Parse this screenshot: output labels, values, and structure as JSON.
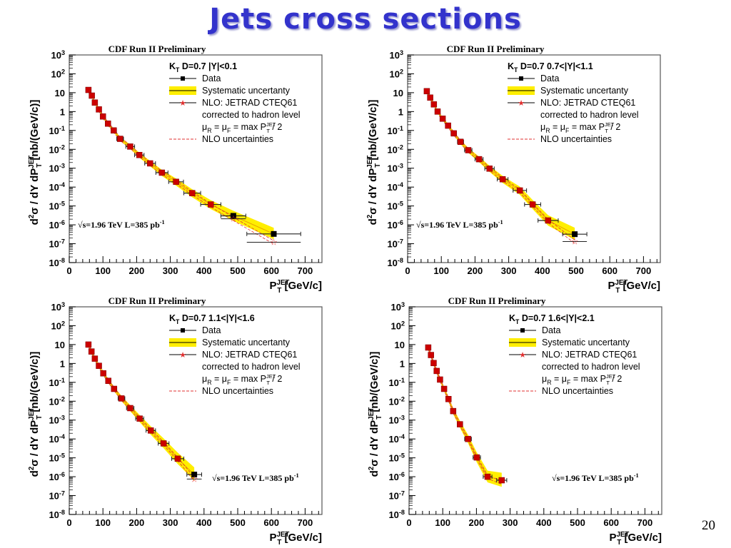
{
  "slide": {
    "title": "Jets cross sections",
    "page_number": "20"
  },
  "colors": {
    "title": "#3333cc",
    "band": "#ffee00",
    "data_marker": "#cc0000",
    "nlo_line": "#e03030",
    "axis": "#000000"
  },
  "chart_data": [
    {
      "type": "scatter",
      "title": "CDF Run II Preliminary",
      "header": "K_T  D=0.7  |Y|<0.1",
      "xlabel": "P_T^JET [GeV/c]",
      "ylabel": "d²σ / dY dP_T^JET [nb/(GeV/c)]",
      "xlim": [
        0,
        750
      ],
      "ylim": [
        1e-08,
        1000
      ],
      "yscale": "log",
      "x_ticks": [
        0,
        100,
        200,
        300,
        400,
        500,
        600,
        700
      ],
      "y_ticks": [
        "10^3",
        "10^2",
        "10",
        "1",
        "10^-1",
        "10^-2",
        "10^-3",
        "10^-4",
        "10^-5",
        "10^-6",
        "10^-7",
        "10^-8"
      ],
      "legend": [
        "Data",
        "Systematic uncertanty",
        "NLO: JETRAD CTEQ61",
        "corrected to hadron level",
        "μR = μF = max PT^JET / 2",
        "NLO uncertainties"
      ],
      "legend_position": "top-right",
      "annotation": "√s=1.96 TeV   L=385 pb^-1",
      "x": [
        57,
        67,
        76,
        88,
        100,
        115,
        132,
        151,
        181,
        208,
        240,
        275,
        317,
        365,
        420,
        487,
        607
      ],
      "xerr": [
        4,
        4,
        4,
        5,
        6,
        7,
        8,
        10,
        13,
        14,
        16,
        18,
        22,
        25,
        30,
        37,
        80
      ],
      "data": [
        14,
        7,
        3,
        1.3,
        0.55,
        0.23,
        0.1,
        0.036,
        0.014,
        0.005,
        0.0018,
        0.00058,
        0.00019,
        4.8e-05,
        1.2e-05,
        3e-06,
        3.3e-07
      ],
      "nlo": [
        14,
        7,
        3,
        1.3,
        0.55,
        0.23,
        0.1,
        0.036,
        0.014,
        0.005,
        0.0018,
        0.00058,
        0.00019,
        4.8e-05,
        1.1e-05,
        2.1e-06,
        1.2e-07
      ],
      "band_lo_factor": [
        0.85,
        0.85,
        0.85,
        0.84,
        0.83,
        0.82,
        0.8,
        0.78,
        0.75,
        0.72,
        0.7,
        0.67,
        0.63,
        0.6,
        0.57,
        0.55,
        0.52
      ],
      "band_hi_factor": [
        1.15,
        1.15,
        1.16,
        1.17,
        1.18,
        1.2,
        1.22,
        1.25,
        1.28,
        1.32,
        1.36,
        1.42,
        1.5,
        1.6,
        1.7,
        1.85,
        2.1
      ]
    },
    {
      "type": "scatter",
      "title": "CDF Run II Preliminary",
      "header": "K_T  D=0.7  0.7<|Y|<1.1",
      "xlabel": "P_T^JET [GeV/c]",
      "ylabel": "d²σ / dY dP_T^JET [nb/(GeV/c)]",
      "xlim": [
        0,
        750
      ],
      "ylim": [
        1e-08,
        1000
      ],
      "yscale": "log",
      "x_ticks": [
        0,
        100,
        200,
        300,
        400,
        500,
        600,
        700
      ],
      "y_ticks": [
        "10^3",
        "10^2",
        "10",
        "1",
        "10^-1",
        "10^-2",
        "10^-3",
        "10^-4",
        "10^-5",
        "10^-6",
        "10^-7",
        "10^-8"
      ],
      "legend": [
        "Data",
        "Systematic uncertanty",
        "NLO: JETRAD CTEQ61",
        "corrected to hadron level",
        "μR = μF = max PT^JET / 2",
        "NLO uncertainties"
      ],
      "legend_position": "top-right",
      "annotation": "√s=1.96 TeV   L=385 pb^-1",
      "x": [
        57,
        67,
        78,
        89,
        104,
        120,
        137,
        157,
        180,
        212,
        243,
        282,
        333,
        371,
        417,
        496
      ],
      "xerr": [
        4,
        4,
        4,
        5,
        6,
        7,
        8,
        9,
        11,
        12,
        14,
        16,
        20,
        24,
        30,
        36
      ],
      "data": [
        12,
        5.5,
        2.4,
        1.0,
        0.42,
        0.18,
        0.07,
        0.025,
        0.009,
        0.003,
        0.00095,
        0.00026,
        6.6e-05,
        1.2e-05,
        1.7e-06,
        3.2e-07
      ],
      "nlo": [
        12,
        5.5,
        2.4,
        1.0,
        0.42,
        0.18,
        0.07,
        0.025,
        0.009,
        0.003,
        0.00095,
        0.00026,
        6.4e-05,
        1.15e-05,
        1.6e-06,
        1.3e-07
      ],
      "band_lo_factor": [
        0.85,
        0.85,
        0.84,
        0.83,
        0.82,
        0.8,
        0.78,
        0.76,
        0.73,
        0.7,
        0.67,
        0.64,
        0.6,
        0.57,
        0.53,
        0.5
      ],
      "band_hi_factor": [
        1.15,
        1.16,
        1.17,
        1.18,
        1.2,
        1.22,
        1.25,
        1.28,
        1.32,
        1.37,
        1.43,
        1.5,
        1.6,
        1.72,
        1.9,
        2.2
      ]
    },
    {
      "type": "scatter",
      "title": "CDF Run II Preliminary",
      "header": "K_T  D=0.7  1.1<|Y|<1.6",
      "xlabel": "P_T^JET [GeV/c]",
      "ylabel": "d²σ / dY dP_T^JET [nb/(GeV/c)]",
      "xlim": [
        0,
        750
      ],
      "ylim": [
        1e-08,
        1000
      ],
      "yscale": "log",
      "x_ticks": [
        0,
        100,
        200,
        300,
        400,
        500,
        600,
        700
      ],
      "y_ticks": [
        "10^3",
        "10^2",
        "10",
        "1",
        "10^-1",
        "10^-2",
        "10^-3",
        "10^-4",
        "10^-5",
        "10^-6",
        "10^-7",
        "10^-8"
      ],
      "legend": [
        "Data",
        "Systematic uncertanty",
        "NLO: JETRAD CTEQ61",
        "corrected to hadron level",
        "μR = μF = max PT^JET / 2",
        "NLO uncertainties"
      ],
      "legend_position": "top-right",
      "annotation": "√s=1.96 TeV   L=385 pb^-1",
      "x": [
        57,
        66,
        76,
        88,
        101,
        116,
        133,
        155,
        181,
        209,
        242,
        280,
        322,
        371
      ],
      "xerr": [
        4,
        4,
        4,
        5,
        6,
        7,
        8,
        10,
        11,
        12,
        14,
        16,
        18,
        22
      ],
      "data": [
        10,
        4.3,
        1.8,
        0.75,
        0.3,
        0.12,
        0.045,
        0.014,
        0.0043,
        0.0012,
        0.00028,
        5.8e-05,
        9e-06,
        1.3e-06
      ],
      "nlo": [
        10,
        4.3,
        1.8,
        0.75,
        0.3,
        0.12,
        0.045,
        0.014,
        0.0043,
        0.0012,
        0.00028,
        5.8e-05,
        8.8e-06,
        7.5e-07
      ],
      "band_lo_factor": [
        0.85,
        0.84,
        0.83,
        0.82,
        0.8,
        0.78,
        0.75,
        0.72,
        0.69,
        0.65,
        0.6,
        0.56,
        0.52,
        0.48
      ],
      "band_hi_factor": [
        1.15,
        1.17,
        1.19,
        1.21,
        1.24,
        1.28,
        1.32,
        1.38,
        1.45,
        1.55,
        1.68,
        1.85,
        2.1,
        2.4
      ]
    },
    {
      "type": "scatter",
      "title": "CDF Run II Preliminary",
      "header": "K_T  D=0.7  1.6<|Y|<2.1",
      "xlabel": "P_T^JET [GeV/c]",
      "ylabel": "d²σ / dY dP_T^JET [nb/(GeV/c)]",
      "xlim": [
        0,
        750
      ],
      "ylim": [
        1e-08,
        1000
      ],
      "yscale": "log",
      "x_ticks": [
        0,
        100,
        200,
        300,
        400,
        500,
        600,
        700
      ],
      "y_ticks": [
        "10^3",
        "10^2",
        "10",
        "1",
        "10^-1",
        "10^-2",
        "10^-3",
        "10^-4",
        "10^-5",
        "10^-6",
        "10^-7",
        "10^-8"
      ],
      "legend": [
        "Data",
        "Systematic uncertanty",
        "NLO: JETRAD CTEQ61",
        "corrected to hadron level",
        "μR = μF = max PT^JET / 2",
        "NLO uncertainties"
      ],
      "legend_position": "top-right",
      "annotation": "√s=1.96 TeV   L=385 pb^-1",
      "x": [
        57,
        65,
        73,
        82,
        92,
        104,
        117,
        131,
        151,
        175,
        201,
        233,
        275
      ],
      "xerr": [
        3,
        3,
        4,
        4,
        5,
        5,
        6,
        7,
        8,
        10,
        11,
        13,
        15
      ],
      "data": [
        7,
        2.8,
        1.05,
        0.4,
        0.14,
        0.045,
        0.013,
        0.003,
        0.0006,
        0.0001,
        1.05e-05,
        1e-06,
        6.5e-07
      ],
      "nlo": [
        7,
        2.8,
        1.05,
        0.4,
        0.14,
        0.045,
        0.013,
        0.003,
        0.0006,
        0.0001,
        1.05e-05,
        1e-06,
        5e-07
      ],
      "band_lo_factor": [
        0.85,
        0.84,
        0.83,
        0.81,
        0.79,
        0.76,
        0.73,
        0.69,
        0.65,
        0.6,
        0.55,
        0.5,
        0.45
      ],
      "band_hi_factor": [
        1.15,
        1.17,
        1.19,
        1.22,
        1.26,
        1.3,
        1.36,
        1.44,
        1.54,
        1.68,
        1.85,
        2.1,
        2.5
      ]
    }
  ]
}
